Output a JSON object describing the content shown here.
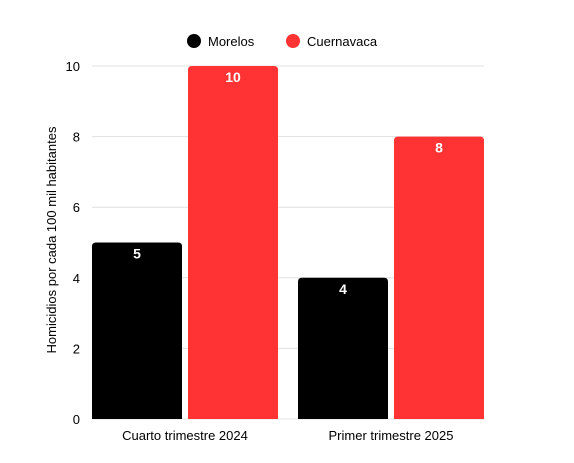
{
  "chart_data": {
    "type": "bar",
    "title": "",
    "xlabel": "",
    "ylabel": "Homicidios por cada 100 mil habitantes",
    "categories": [
      "Cuarto trimestre 2024",
      "Primer trimestre 2025"
    ],
    "series": [
      {
        "name": "Morelos",
        "values": [
          5,
          4
        ],
        "value_labels": [
          "5",
          "4"
        ],
        "color": "#000000"
      },
      {
        "name": "Cuernavaca",
        "values": [
          10,
          8
        ],
        "value_labels": [
          "10",
          "8"
        ],
        "color": "#ff3333"
      }
    ],
    "ylim": [
      0,
      10
    ],
    "yticks": [
      0,
      2,
      4,
      6,
      8,
      10
    ],
    "grid": true,
    "legend_position": "top-center",
    "colors": {
      "grid": "#e0e0e0",
      "text": "#000000",
      "data_label": "#ffffff"
    }
  }
}
